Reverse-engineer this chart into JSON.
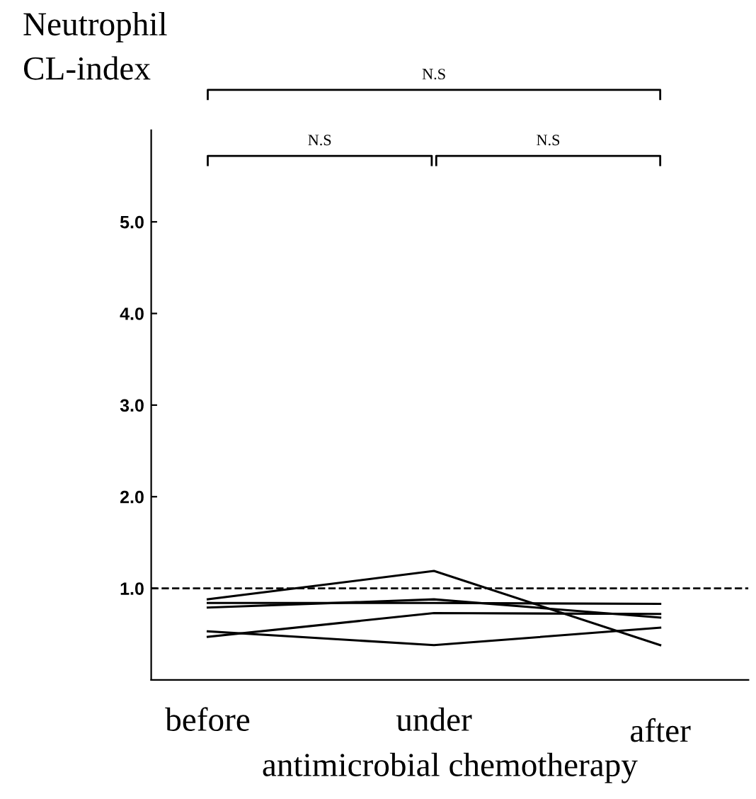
{
  "chart_data": {
    "type": "line",
    "ylabel": "Neutrophil\nCL-index",
    "xlabel": "antimicrobial chemotherapy",
    "categories": [
      "before",
      "under",
      "after"
    ],
    "series": [
      {
        "color": "#000000",
        "values": [
          0.88,
          1.19,
          0.38
        ]
      },
      {
        "color": "#000000",
        "values": [
          0.84,
          0.84,
          0.83
        ]
      },
      {
        "color": "#000000",
        "values": [
          0.79,
          0.88,
          0.68
        ]
      },
      {
        "color": "#000000",
        "values": [
          0.47,
          0.73,
          0.72
        ]
      },
      {
        "color": "#000000",
        "values": [
          0.53,
          0.38,
          0.57
        ]
      }
    ],
    "ylim": [
      0,
      6
    ],
    "yticks": [
      {
        "value": 1,
        "label": "1.0"
      },
      {
        "value": 2,
        "label": "2.0"
      },
      {
        "value": 3,
        "label": "3.0"
      },
      {
        "value": 4,
        "label": "4.0"
      },
      {
        "value": 5,
        "label": "5.0"
      }
    ],
    "ref_lines": [
      {
        "axis": "y",
        "value": 1,
        "line_style": "dashed",
        "color": "#000000"
      }
    ],
    "annotations": [
      "N.S",
      "N.S",
      "N.S"
    ],
    "grid": false,
    "legend": false,
    "marker": "none",
    "line_style": "solid"
  }
}
